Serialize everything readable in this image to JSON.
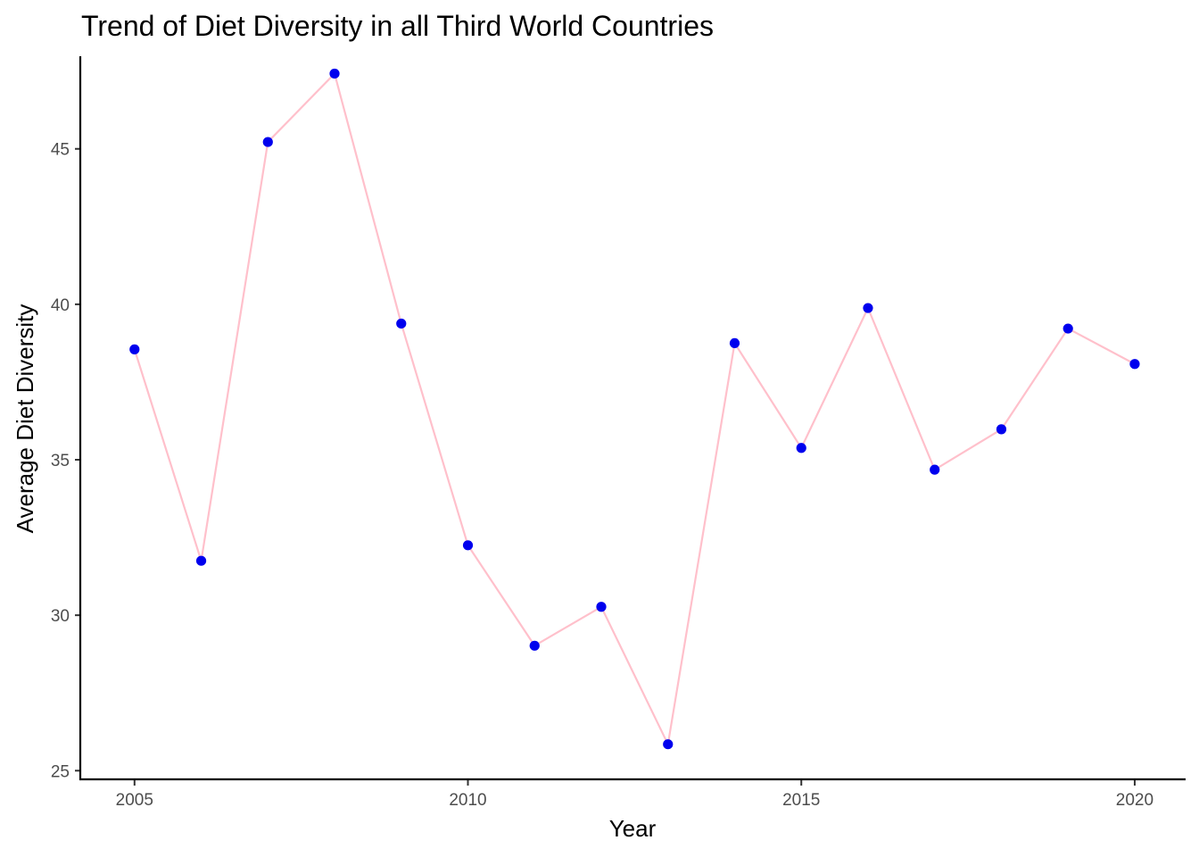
{
  "chart_data": {
    "type": "line",
    "title": "Trend of Diet Diversity in all Third World Countries",
    "xlabel": "Year",
    "ylabel": "Average Diet Diversity",
    "x": [
      2005,
      2006,
      2007,
      2008,
      2009,
      2010,
      2011,
      2012,
      2013,
      2014,
      2015,
      2016,
      2017,
      2018,
      2019,
      2020
    ],
    "values": [
      38.55,
      31.75,
      45.22,
      47.42,
      39.38,
      32.25,
      29.02,
      30.27,
      25.85,
      38.75,
      35.38,
      39.88,
      34.68,
      35.98,
      39.22,
      38.08
    ],
    "xlim": [
      2004.2,
      2020.75
    ],
    "ylim": [
      24.75,
      47.95
    ],
    "xticks": [
      2005,
      2010,
      2015,
      2020
    ],
    "yticks": [
      25,
      30,
      35,
      40,
      45
    ],
    "line_color": "#ffc0cb",
    "point_color": "#0000ee",
    "grid": false,
    "legend": "none"
  }
}
